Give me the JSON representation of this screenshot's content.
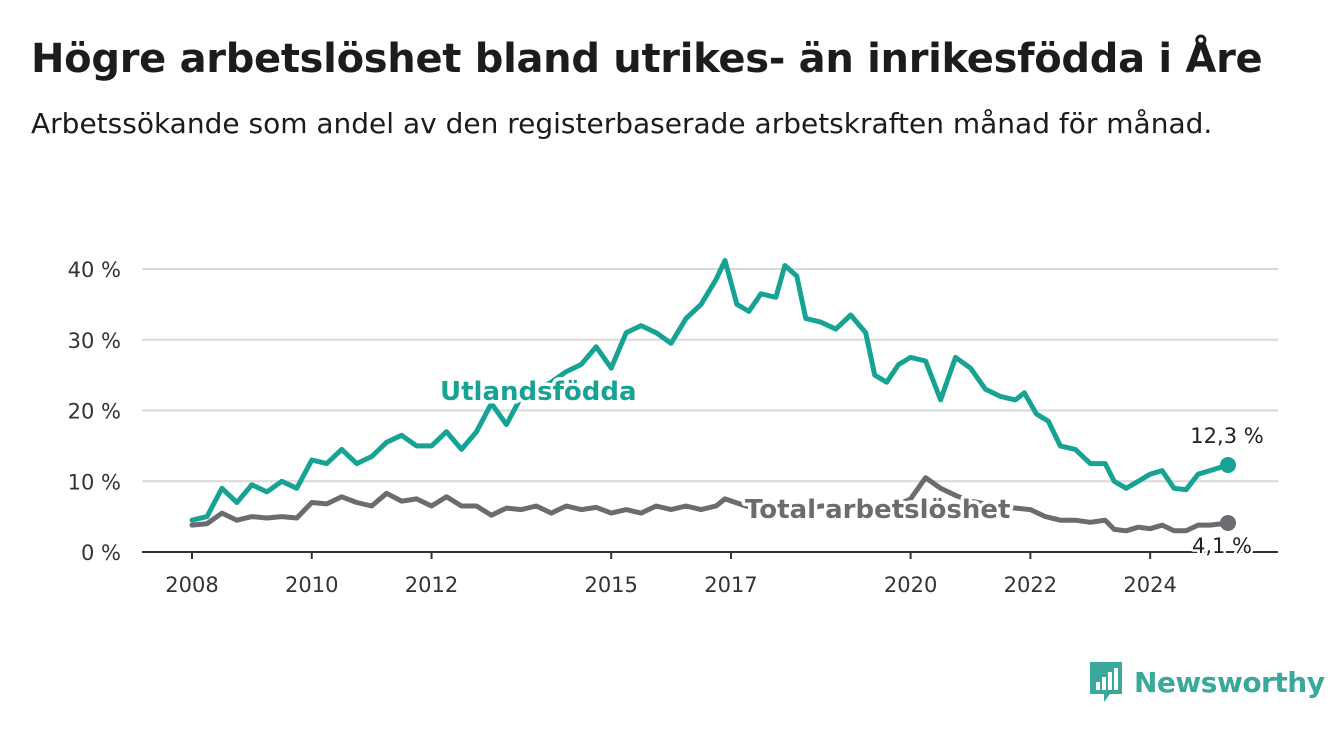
{
  "header": {
    "title": "Högre arbetslöshet bland utrikes- än inrikesfödda i Åre",
    "subtitle": "Arbetssökande som andel av den registerbaserade arbetskraften månad för månad."
  },
  "brand": {
    "name": "Newsworthy",
    "color": "#3aa89a",
    "icon": "bar-chart-speech-bubble-icon"
  },
  "chart_data": {
    "type": "line",
    "ylim": [
      0,
      40
    ],
    "y_ticks": [
      0,
      10,
      20,
      30,
      40
    ],
    "y_tick_labels": [
      "0 %",
      "10 %",
      "20 %",
      "30 %",
      "40 %"
    ],
    "x_ticks": [
      2008,
      2010,
      2012,
      2015,
      2017,
      2020,
      2022,
      2024
    ],
    "x_tick_labels": [
      "2008",
      "2010",
      "2012",
      "2015",
      "2017",
      "2020",
      "2022",
      "2024"
    ],
    "grid": "horizontal",
    "legend": "direct labels",
    "series": [
      {
        "name": "Utlandsfödda",
        "color": "#16a394",
        "end_label": "12,3 %",
        "points": [
          [
            2008.0,
            4.5
          ],
          [
            2008.25,
            5.0
          ],
          [
            2008.5,
            9.0
          ],
          [
            2008.75,
            7.0
          ],
          [
            2009.0,
            9.5
          ],
          [
            2009.25,
            8.5
          ],
          [
            2009.5,
            10.0
          ],
          [
            2009.75,
            9.0
          ],
          [
            2010.0,
            13.0
          ],
          [
            2010.25,
            12.5
          ],
          [
            2010.5,
            14.5
          ],
          [
            2010.75,
            12.5
          ],
          [
            2011.0,
            13.5
          ],
          [
            2011.25,
            15.5
          ],
          [
            2011.5,
            16.5
          ],
          [
            2011.75,
            15.0
          ],
          [
            2012.0,
            15.0
          ],
          [
            2012.25,
            17.0
          ],
          [
            2012.5,
            14.5
          ],
          [
            2012.75,
            17.0
          ],
          [
            2013.0,
            21.0
          ],
          [
            2013.25,
            18.0
          ],
          [
            2013.5,
            22.0
          ],
          [
            2013.75,
            23.0
          ],
          [
            2014.0,
            24.0
          ],
          [
            2014.25,
            25.5
          ],
          [
            2014.5,
            26.5
          ],
          [
            2014.75,
            29.0
          ],
          [
            2015.0,
            26.0
          ],
          [
            2015.25,
            31.0
          ],
          [
            2015.5,
            32.0
          ],
          [
            2015.75,
            31.0
          ],
          [
            2016.0,
            29.5
          ],
          [
            2016.25,
            33.0
          ],
          [
            2016.5,
            35.0
          ],
          [
            2016.75,
            38.5
          ],
          [
            2016.9,
            41.2
          ],
          [
            2017.1,
            35.0
          ],
          [
            2017.3,
            34.0
          ],
          [
            2017.5,
            36.5
          ],
          [
            2017.75,
            36.0
          ],
          [
            2017.9,
            40.5
          ],
          [
            2018.1,
            39.0
          ],
          [
            2018.25,
            33.0
          ],
          [
            2018.5,
            32.5
          ],
          [
            2018.75,
            31.5
          ],
          [
            2019.0,
            33.5
          ],
          [
            2019.25,
            31.0
          ],
          [
            2019.4,
            25.0
          ],
          [
            2019.6,
            24.0
          ],
          [
            2019.8,
            26.5
          ],
          [
            2020.0,
            27.5
          ],
          [
            2020.25,
            27.0
          ],
          [
            2020.5,
            21.5
          ],
          [
            2020.75,
            27.5
          ],
          [
            2021.0,
            26.0
          ],
          [
            2021.25,
            23.0
          ],
          [
            2021.5,
            22.0
          ],
          [
            2021.75,
            21.5
          ],
          [
            2021.9,
            22.5
          ],
          [
            2022.1,
            19.5
          ],
          [
            2022.3,
            18.5
          ],
          [
            2022.5,
            15.0
          ],
          [
            2022.75,
            14.5
          ],
          [
            2023.0,
            12.5
          ],
          [
            2023.25,
            12.5
          ],
          [
            2023.4,
            10.0
          ],
          [
            2023.6,
            9.0
          ],
          [
            2023.8,
            10.0
          ],
          [
            2024.0,
            11.0
          ],
          [
            2024.2,
            11.5
          ],
          [
            2024.4,
            9.0
          ],
          [
            2024.6,
            8.8
          ],
          [
            2024.8,
            11.0
          ],
          [
            2025.0,
            11.5
          ],
          [
            2025.3,
            12.3
          ]
        ]
      },
      {
        "name": "Total arbetslöshet",
        "color": "#6b6b70",
        "end_label": "4,1 %",
        "points": [
          [
            2008.0,
            3.8
          ],
          [
            2008.25,
            4.0
          ],
          [
            2008.5,
            5.5
          ],
          [
            2008.75,
            4.5
          ],
          [
            2009.0,
            5.0
          ],
          [
            2009.25,
            4.8
          ],
          [
            2009.5,
            5.0
          ],
          [
            2009.75,
            4.8
          ],
          [
            2010.0,
            7.0
          ],
          [
            2010.25,
            6.8
          ],
          [
            2010.5,
            7.8
          ],
          [
            2010.75,
            7.0
          ],
          [
            2011.0,
            6.5
          ],
          [
            2011.25,
            8.3
          ],
          [
            2011.5,
            7.2
          ],
          [
            2011.75,
            7.5
          ],
          [
            2012.0,
            6.5
          ],
          [
            2012.25,
            7.8
          ],
          [
            2012.5,
            6.5
          ],
          [
            2012.75,
            6.5
          ],
          [
            2013.0,
            5.2
          ],
          [
            2013.25,
            6.2
          ],
          [
            2013.5,
            6.0
          ],
          [
            2013.75,
            6.5
          ],
          [
            2014.0,
            5.5
          ],
          [
            2014.25,
            6.5
          ],
          [
            2014.5,
            6.0
          ],
          [
            2014.75,
            6.3
          ],
          [
            2015.0,
            5.5
          ],
          [
            2015.25,
            6.0
          ],
          [
            2015.5,
            5.5
          ],
          [
            2015.75,
            6.5
          ],
          [
            2016.0,
            6.0
          ],
          [
            2016.25,
            6.5
          ],
          [
            2016.5,
            6.0
          ],
          [
            2016.75,
            6.5
          ],
          [
            2016.9,
            7.5
          ],
          [
            2017.25,
            6.5
          ],
          [
            2017.5,
            6.2
          ],
          [
            2017.75,
            6.5
          ],
          [
            2018.0,
            6.5
          ],
          [
            2018.25,
            6.0
          ],
          [
            2018.5,
            6.5
          ],
          [
            2018.75,
            6.5
          ],
          [
            2019.0,
            6.2
          ],
          [
            2019.25,
            6.5
          ],
          [
            2019.5,
            6.5
          ],
          [
            2019.75,
            6.5
          ],
          [
            2020.0,
            7.5
          ],
          [
            2020.25,
            10.5
          ],
          [
            2020.5,
            9.0
          ],
          [
            2020.75,
            8.0
          ],
          [
            2021.0,
            7.2
          ],
          [
            2021.25,
            6.8
          ],
          [
            2021.5,
            6.5
          ],
          [
            2021.75,
            6.2
          ],
          [
            2022.0,
            6.0
          ],
          [
            2022.25,
            5.0
          ],
          [
            2022.5,
            4.5
          ],
          [
            2022.75,
            4.5
          ],
          [
            2023.0,
            4.2
          ],
          [
            2023.25,
            4.5
          ],
          [
            2023.4,
            3.2
          ],
          [
            2023.6,
            3.0
          ],
          [
            2023.8,
            3.5
          ],
          [
            2024.0,
            3.3
          ],
          [
            2024.2,
            3.8
          ],
          [
            2024.4,
            3.0
          ],
          [
            2024.6,
            3.0
          ],
          [
            2024.8,
            3.8
          ],
          [
            2025.0,
            3.8
          ],
          [
            2025.3,
            4.1
          ]
        ]
      }
    ]
  }
}
